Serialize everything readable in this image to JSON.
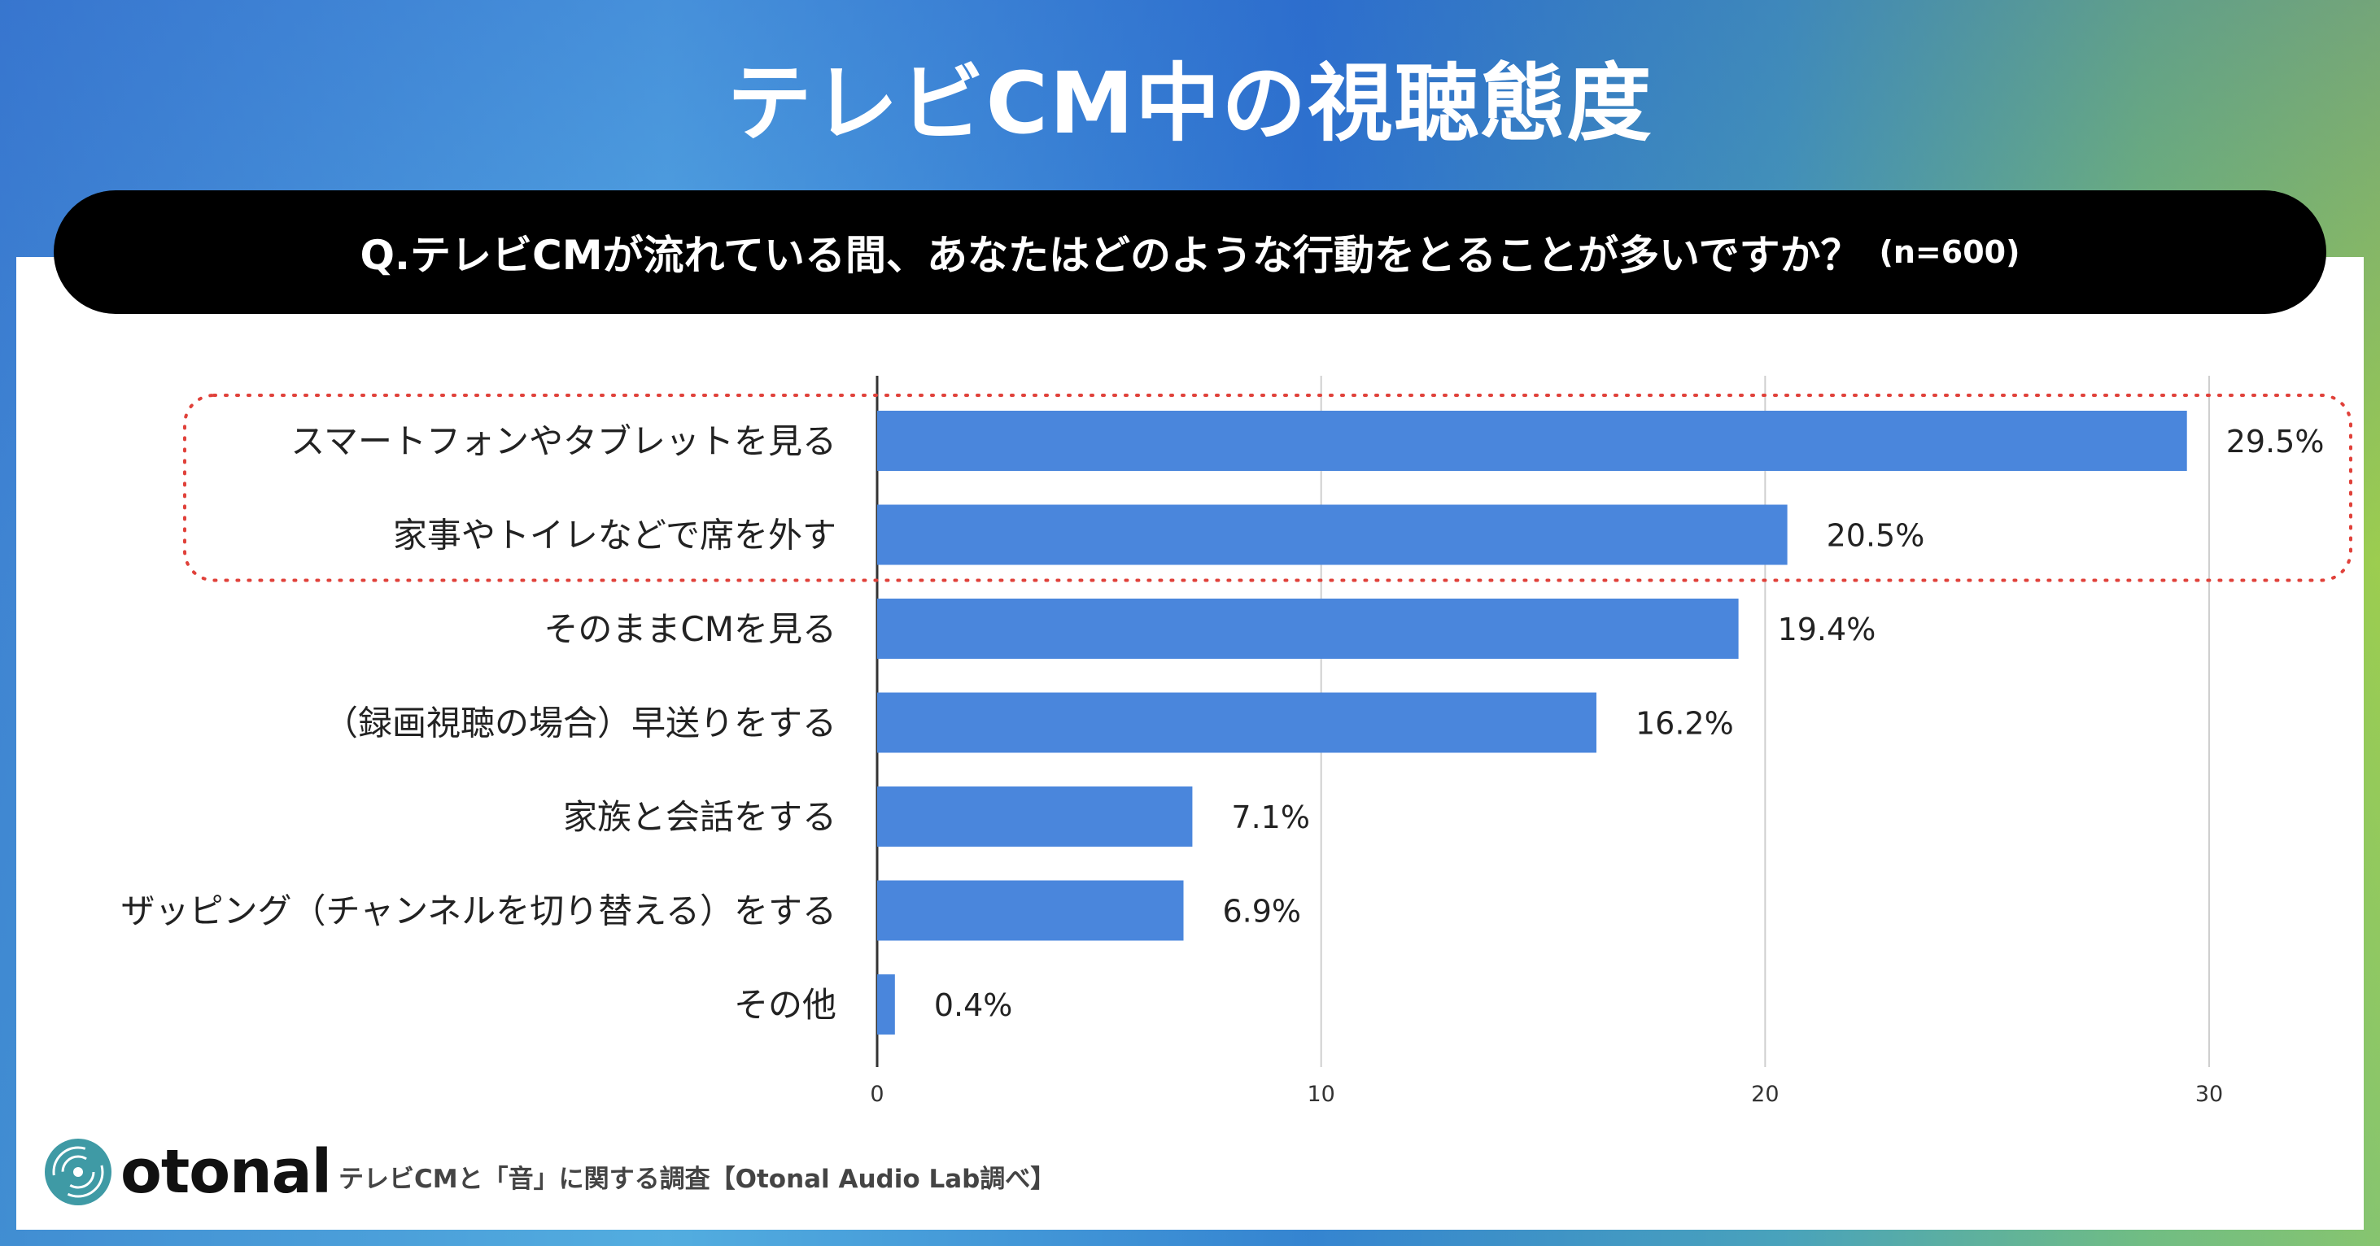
{
  "title": "テレビCM中の視聴態度",
  "question": {
    "text": "Q.テレビCMが流れている間、あなたはどのような行動をとることが多いですか？",
    "sample": "(n=600)"
  },
  "colors": {
    "bar": "#4a86dc",
    "highlight_border": "#e0413a"
  },
  "chart_data": {
    "type": "bar",
    "orientation": "horizontal",
    "categories": [
      "スマートフォンやタブレットを見る",
      "家事やトイレなどで席を外す",
      "そのままCMを見る",
      "（録画視聴の場合）早送りをする",
      "家族と会話をする",
      "ザッピング（チャンネルを切り替える）をする",
      "その他"
    ],
    "values": [
      29.5,
      20.5,
      19.4,
      16.2,
      7.1,
      6.9,
      0.4
    ],
    "value_labels": [
      "29.5%",
      "20.5%",
      "19.4%",
      "16.2%",
      "7.1%",
      "6.9%",
      "0.4%"
    ],
    "xlim": [
      0,
      30
    ],
    "xticks": [
      "0",
      "10",
      "20",
      "30"
    ],
    "grid": true,
    "highlighted_categories": [
      0,
      1
    ]
  },
  "footer": {
    "logo_text": "otonal",
    "logo_icon": "vinyl-record-icon",
    "source": "テレビCMと「音」に関する調査【Otonal Audio Lab調べ】"
  }
}
